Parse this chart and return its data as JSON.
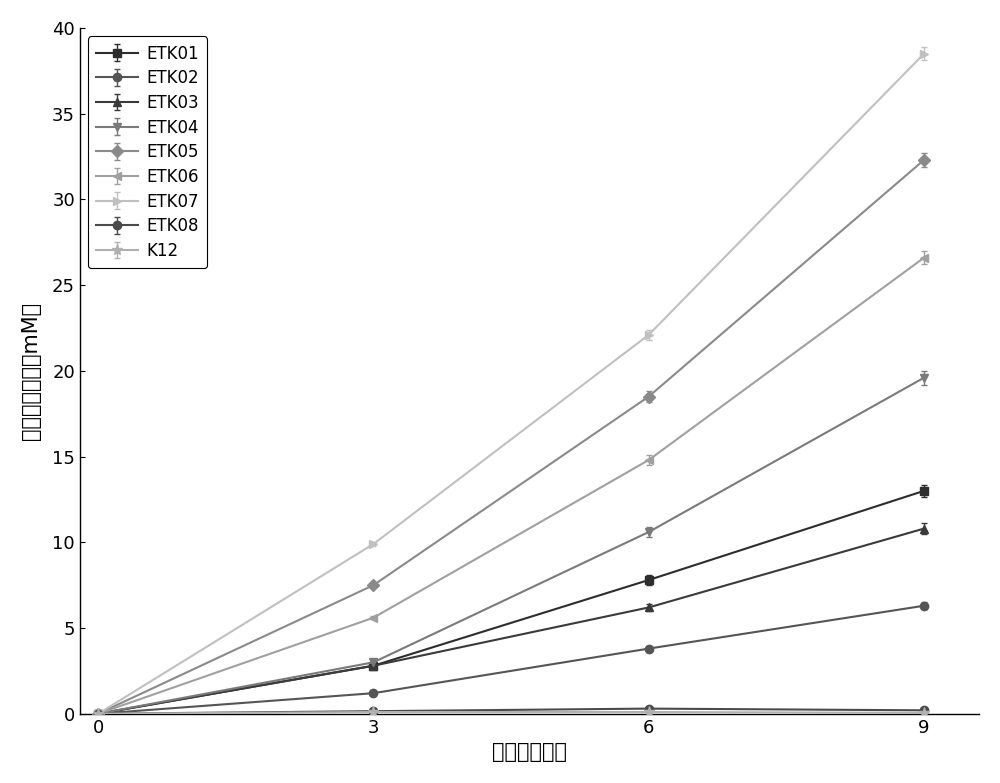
{
  "series": [
    {
      "label": "ETK01",
      "color": "#2d2d2d",
      "marker": "s",
      "markersize": 6,
      "x": [
        0,
        3,
        6,
        9
      ],
      "y": [
        0.0,
        2.8,
        7.8,
        13.0
      ],
      "yerr": [
        0.0,
        0.1,
        0.3,
        0.35
      ]
    },
    {
      "label": "ETK02",
      "color": "#555555",
      "marker": "o",
      "markersize": 6,
      "x": [
        0,
        3,
        6,
        9
      ],
      "y": [
        0.0,
        1.2,
        3.8,
        6.3
      ],
      "yerr": [
        0.0,
        0.1,
        0.15,
        0.2
      ]
    },
    {
      "label": "ETK03",
      "color": "#3a3a3a",
      "marker": "^",
      "markersize": 6,
      "x": [
        0,
        3,
        6,
        9
      ],
      "y": [
        0.0,
        2.8,
        6.2,
        10.8
      ],
      "yerr": [
        0.0,
        0.1,
        0.2,
        0.3
      ]
    },
    {
      "label": "ETK04",
      "color": "#7a7a7a",
      "marker": "v",
      "markersize": 6,
      "x": [
        0,
        3,
        6,
        9
      ],
      "y": [
        0.0,
        3.0,
        10.6,
        19.6
      ],
      "yerr": [
        0.0,
        0.1,
        0.3,
        0.4
      ]
    },
    {
      "label": "ETK05",
      "color": "#8a8a8a",
      "marker": "D",
      "markersize": 6,
      "x": [
        0,
        3,
        6,
        9
      ],
      "y": [
        0.0,
        7.5,
        18.5,
        32.3
      ],
      "yerr": [
        0.0,
        0.1,
        0.3,
        0.4
      ]
    },
    {
      "label": "ETK06",
      "color": "#a0a0a0",
      "marker": "<",
      "markersize": 6,
      "x": [
        0,
        3,
        6,
        9
      ],
      "y": [
        0.0,
        5.6,
        14.8,
        26.6
      ],
      "yerr": [
        0.0,
        0.1,
        0.3,
        0.4
      ]
    },
    {
      "label": "ETK07",
      "color": "#c0c0c0",
      "marker": ">",
      "markersize": 6,
      "x": [
        0,
        3,
        6,
        9
      ],
      "y": [
        0.0,
        9.9,
        22.1,
        38.5
      ],
      "yerr": [
        0.0,
        0.1,
        0.3,
        0.4
      ]
    },
    {
      "label": "ETK08",
      "color": "#4a4a4a",
      "marker": "o",
      "markersize": 6,
      "x": [
        0,
        3,
        6,
        9
      ],
      "y": [
        0.0,
        0.15,
        0.3,
        0.2
      ],
      "yerr": [
        0.0,
        0.05,
        0.05,
        0.05
      ]
    },
    {
      "label": "K12",
      "color": "#b0b0b0",
      "marker": "*",
      "markersize": 8,
      "x": [
        0,
        3,
        6,
        9
      ],
      "y": [
        0.0,
        0.1,
        0.1,
        0.05
      ],
      "yerr": [
        0.0,
        0.0,
        0.0,
        0.0
      ]
    }
  ],
  "xlabel": "时间（小时）",
  "ylabel": "四氮嗧啊产量（mM）",
  "xlim": [
    -0.2,
    9.6
  ],
  "ylim": [
    0,
    40
  ],
  "xticks": [
    0,
    3,
    6,
    9
  ],
  "yticks": [
    0,
    5,
    10,
    15,
    20,
    25,
    30,
    35,
    40
  ],
  "legend_loc": "upper left",
  "background_color": "#ffffff",
  "linewidth": 1.5,
  "figsize": [
    10.0,
    7.83
  ],
  "dpi": 100
}
